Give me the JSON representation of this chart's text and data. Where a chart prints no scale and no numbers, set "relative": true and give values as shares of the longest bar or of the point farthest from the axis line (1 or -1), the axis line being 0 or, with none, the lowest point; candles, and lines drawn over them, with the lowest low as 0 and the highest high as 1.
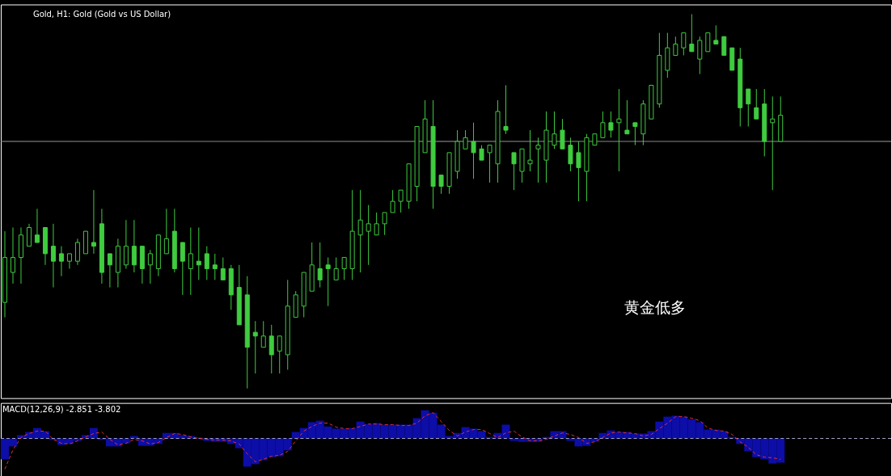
{
  "chart_data": [
    {
      "type": "candlestick",
      "title": "Gold, H1: Gold (Gold vs US Dollar)",
      "relative": true,
      "tick_labels": false,
      "color": "#3fcc3f",
      "categories": [
        null,
        null,
        null,
        null,
        null,
        null,
        null,
        null,
        null,
        null,
        null,
        null,
        null,
        null,
        null,
        null,
        null,
        null,
        null,
        null,
        null,
        null,
        null,
        null,
        null,
        null,
        null,
        null,
        null,
        null,
        null,
        null,
        null,
        null,
        null,
        null,
        null,
        null,
        null,
        null,
        null,
        null,
        null,
        null,
        null,
        null,
        null,
        null,
        null,
        null,
        null,
        null,
        null,
        null,
        null,
        null,
        null,
        null,
        null,
        null,
        null,
        null,
        null,
        null,
        null,
        null,
        null,
        null,
        null,
        null,
        null,
        null,
        null,
        null,
        null,
        null,
        null,
        null,
        null,
        null,
        null,
        null,
        null,
        null,
        null,
        null,
        null,
        null,
        null,
        null,
        null,
        null,
        null,
        null,
        null,
        null,
        null
      ],
      "ohlc": [
        [
          0.23,
          0.42,
          0.19,
          0.35
        ],
        [
          0.31,
          0.43,
          0.28,
          0.35
        ],
        [
          0.35,
          0.43,
          0.28,
          0.41
        ],
        [
          0.38,
          0.44,
          0.38,
          0.43
        ],
        [
          0.41,
          0.48,
          0.39,
          0.39
        ],
        [
          0.43,
          0.43,
          0.33,
          0.36
        ],
        [
          0.38,
          0.44,
          0.27,
          0.34
        ],
        [
          0.36,
          0.38,
          0.3,
          0.34
        ],
        [
          0.34,
          0.36,
          0.32,
          0.36
        ],
        [
          0.34,
          0.4,
          0.33,
          0.39
        ],
        [
          0.36,
          0.42,
          0.36,
          0.42
        ],
        [
          0.39,
          0.53,
          0.36,
          0.38
        ],
        [
          0.44,
          0.48,
          0.28,
          0.31
        ],
        [
          0.36,
          0.36,
          0.27,
          0.33
        ],
        [
          0.31,
          0.4,
          0.27,
          0.38
        ],
        [
          0.33,
          0.45,
          0.32,
          0.38
        ],
        [
          0.38,
          0.45,
          0.31,
          0.33
        ],
        [
          0.38,
          0.38,
          0.28,
          0.32
        ],
        [
          0.33,
          0.37,
          0.28,
          0.36
        ],
        [
          0.32,
          0.41,
          0.3,
          0.41
        ],
        [
          0.36,
          0.48,
          0.36,
          0.4
        ],
        [
          0.42,
          0.48,
          0.31,
          0.32
        ],
        [
          0.39,
          0.39,
          0.25,
          0.34
        ],
        [
          0.32,
          0.43,
          0.25,
          0.36
        ],
        [
          0.34,
          0.43,
          0.29,
          0.33
        ],
        [
          0.36,
          0.38,
          0.29,
          0.32
        ],
        [
          0.33,
          0.36,
          0.29,
          0.32
        ],
        [
          0.32,
          0.35,
          0.29,
          0.29
        ],
        [
          0.32,
          0.33,
          0.21,
          0.25
        ],
        [
          0.27,
          0.33,
          0.17,
          0.17
        ],
        [
          0.25,
          0.3,
          0,
          0.11
        ],
        [
          0.15,
          0.18,
          0.04,
          0.14
        ],
        [
          0.11,
          0.18,
          0.11,
          0.14
        ],
        [
          0.14,
          0.17,
          0.04,
          0.09
        ],
        [
          0.1,
          0.14,
          0.04,
          0.14
        ],
        [
          0.09,
          0.29,
          0.05,
          0.22
        ],
        [
          0.19,
          0.26,
          0.19,
          0.25
        ],
        [
          0.22,
          0.31,
          0.19,
          0.31
        ],
        [
          0.26,
          0.39,
          0.26,
          0.33
        ],
        [
          0.32,
          0.39,
          0.27,
          0.29
        ],
        [
          0.33,
          0.35,
          0.22,
          0.32
        ],
        [
          0.29,
          0.35,
          0.29,
          0.32
        ],
        [
          0.32,
          0.35,
          0.29,
          0.35
        ],
        [
          0.32,
          0.53,
          0.29,
          0.42
        ],
        [
          0.41,
          0.53,
          0.31,
          0.45
        ],
        [
          0.42,
          0.49,
          0.33,
          0.44
        ],
        [
          0.41,
          0.47,
          0.41,
          0.44
        ],
        [
          0.44,
          0.47,
          0.41,
          0.47
        ],
        [
          0.47,
          0.53,
          0.47,
          0.5
        ],
        [
          0.5,
          0.53,
          0.47,
          0.53
        ],
        [
          0.5,
          0.6,
          0.48,
          0.6
        ],
        [
          0.54,
          0.7,
          0.5,
          0.7
        ],
        [
          0.63,
          0.77,
          0.63,
          0.72
        ],
        [
          0.7,
          0.77,
          0.48,
          0.54
        ],
        [
          0.57,
          0.57,
          0.52,
          0.54
        ],
        [
          0.54,
          0.63,
          0.52,
          0.63
        ],
        [
          0.58,
          0.69,
          0.56,
          0.66
        ],
        [
          0.64,
          0.69,
          0.64,
          0.67
        ],
        [
          0.66,
          0.71,
          0.56,
          0.63
        ],
        [
          0.64,
          0.65,
          0.61,
          0.61
        ],
        [
          0.63,
          0.65,
          0.55,
          0.65
        ],
        [
          0.6,
          0.77,
          0.55,
          0.74
        ],
        [
          0.7,
          0.81,
          0.68,
          0.69
        ],
        [
          0.63,
          0.63,
          0.53,
          0.6
        ],
        [
          0.58,
          0.64,
          0.55,
          0.64
        ],
        [
          0.6,
          0.69,
          0.58,
          0.61
        ],
        [
          0.64,
          0.67,
          0.55,
          0.65
        ],
        [
          0.61,
          0.74,
          0.55,
          0.69
        ],
        [
          0.65,
          0.74,
          0.64,
          0.68
        ],
        [
          0.69,
          0.72,
          0.64,
          0.64
        ],
        [
          0.65,
          0.67,
          0.58,
          0.6
        ],
        [
          0.63,
          0.66,
          0.5,
          0.59
        ],
        [
          0.58,
          0.68,
          0.5,
          0.67
        ],
        [
          0.65,
          0.68,
          0.65,
          0.68
        ],
        [
          0.67,
          0.74,
          0.67,
          0.71
        ],
        [
          0.71,
          0.74,
          0.67,
          0.69
        ],
        [
          0.71,
          0.8,
          0.58,
          0.72
        ],
        [
          0.69,
          0.77,
          0.68,
          0.68
        ],
        [
          0.71,
          0.71,
          0.65,
          0.7
        ],
        [
          0.68,
          0.77,
          0.65,
          0.76
        ],
        [
          0.72,
          0.81,
          0.72,
          0.81
        ],
        [
          0.76,
          0.95,
          0.75,
          0.89
        ],
        [
          0.85,
          0.95,
          0.83,
          0.91
        ],
        [
          0.89,
          0.94,
          0.89,
          0.92
        ],
        [
          0.91,
          0.95,
          0.89,
          0.95
        ],
        [
          0.92,
          1,
          0.9,
          0.9
        ],
        [
          0.88,
          0.94,
          0.84,
          0.93
        ],
        [
          0.9,
          0.95,
          0.9,
          0.95
        ],
        [
          0.93,
          0.97,
          0.92,
          0.92
        ],
        [
          0.94,
          0.94,
          0.89,
          0.89
        ],
        [
          0.91,
          0.91,
          0.85,
          0.85
        ],
        [
          0.88,
          0.91,
          0.7,
          0.75
        ],
        [
          0.8,
          0.8,
          0.7,
          0.76
        ],
        [
          0.75,
          0.8,
          0.72,
          0.72
        ],
        [
          0.76,
          0.8,
          0.62,
          0.66
        ],
        [
          0.71,
          0.78,
          0.53,
          0.72
        ],
        [
          0.66,
          0.78,
          0.66,
          0.73
        ]
      ],
      "ref_lines": [
        {
          "axis": "y",
          "value": 0.66,
          "color": "#a0a0a8"
        }
      ],
      "annotations": [
        "黄金低多"
      ]
    },
    {
      "type": "bar",
      "title": "MACD(12,26,9) -2.851 -3.802",
      "relative": true,
      "tick_labels": false,
      "categories": [
        null,
        null,
        null,
        null,
        null,
        null,
        null,
        null,
        null,
        null,
        null,
        null,
        null,
        null,
        null,
        null,
        null,
        null,
        null,
        null,
        null,
        null,
        null,
        null,
        null,
        null,
        null,
        null,
        null,
        null,
        null,
        null,
        null,
        null,
        null,
        null,
        null,
        null,
        null,
        null,
        null,
        null,
        null,
        null,
        null,
        null,
        null,
        null,
        null,
        null,
        null,
        null,
        null,
        null,
        null,
        null,
        null,
        null,
        null,
        null,
        null,
        null,
        null,
        null,
        null,
        null,
        null,
        null,
        null,
        null,
        null,
        null,
        null,
        null,
        null,
        null,
        null,
        null,
        null,
        null,
        null,
        null,
        null,
        null,
        null,
        null,
        null,
        null,
        null,
        null,
        null,
        null,
        null,
        null,
        null,
        null,
        null
      ],
      "series": [
        {
          "type": "bar",
          "color": "#0d0da8",
          "values": [
            -0.68,
            -0.26,
            0.11,
            0.21,
            0.34,
            0.24,
            -0.05,
            -0.21,
            -0.18,
            -0.08,
            0.11,
            0.34,
            -0.05,
            -0.26,
            -0.26,
            -0.16,
            0.08,
            -0.24,
            -0.24,
            -0.18,
            0.18,
            0.18,
            0.11,
            0.08,
            0.03,
            -0.08,
            -0.11,
            -0.11,
            -0.18,
            -0.32,
            -0.92,
            -0.84,
            -0.71,
            -0.61,
            -0.58,
            -0.39,
            0.21,
            0.34,
            0.53,
            0.58,
            0.39,
            0.32,
            0.32,
            0.34,
            0.55,
            0.47,
            0.5,
            0.45,
            0.45,
            0.45,
            0.45,
            0.66,
            0.92,
            0.84,
            0.45,
            0.08,
            0.18,
            0.37,
            0.32,
            0.24,
            0.05,
            0.18,
            0.45,
            -0.08,
            -0.11,
            -0.11,
            -0.11,
            0.05,
            0.24,
            0.24,
            -0.08,
            -0.26,
            -0.24,
            -0.11,
            0.18,
            0.26,
            0.21,
            0.21,
            0.16,
            0.16,
            0.24,
            0.55,
            0.71,
            0.74,
            0.71,
            0.63,
            0.53,
            0.29,
            0.29,
            0.24,
            0.05,
            -0.18,
            -0.42,
            -0.61,
            -0.68,
            -0.82,
            -0.79
          ]
        },
        {
          "type": "line",
          "color": "#e03030",
          "line_style": "dashed",
          "values": [
            -1.0,
            -0.37,
            0.03,
            0.16,
            0.24,
            0.24,
            -0.03,
            -0.16,
            -0.18,
            -0.08,
            0.05,
            0.16,
            0.21,
            -0.03,
            -0.21,
            -0.16,
            -0.03,
            -0.08,
            -0.18,
            -0.13,
            0.03,
            0.16,
            0.13,
            0.05,
            0,
            -0.03,
            -0.05,
            -0.05,
            -0.08,
            -0.18,
            -0.5,
            -0.76,
            -0.68,
            -0.58,
            -0.55,
            -0.42,
            -0.08,
            0.24,
            0.39,
            0.5,
            0.5,
            0.37,
            0.32,
            0.32,
            0.39,
            0.47,
            0.47,
            0.45,
            0.45,
            0.42,
            0.42,
            0.5,
            0.74,
            0.84,
            0.55,
            0.26,
            0.08,
            0.21,
            0.29,
            0.29,
            0.16,
            0.03,
            0.18,
            0.24,
            0.05,
            -0.08,
            -0.08,
            -0.03,
            0.08,
            0.18,
            0.13,
            0.03,
            -0.16,
            -0.11,
            0.03,
            0.18,
            0.21,
            0.18,
            0.16,
            0.08,
            0.13,
            0.32,
            0.5,
            0.71,
            0.71,
            0.66,
            0.58,
            0.34,
            0.26,
            0.24,
            0.13,
            -0.11,
            -0.29,
            -0.53,
            -0.61,
            -0.63,
            -0.68
          ]
        }
      ],
      "ref_lines": [
        {
          "axis": "y",
          "value": 0,
          "color": "#a8a8c8",
          "line_style": "dashed"
        }
      ]
    }
  ]
}
